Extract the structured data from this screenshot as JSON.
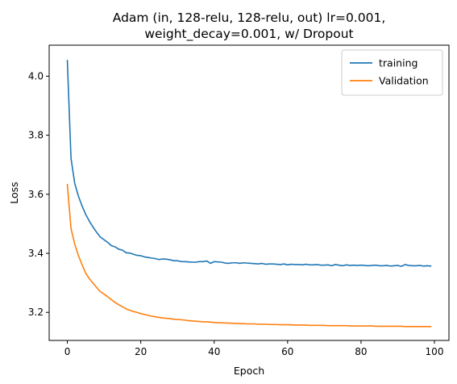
{
  "chart_data": {
    "type": "line",
    "title_line1": "Adam (in, 128-relu, 128-relu, out) lr=0.001,",
    "title_line2": "weight_decay=0.001, w/ Dropout",
    "xlabel": "Epoch",
    "ylabel": "Loss",
    "xlim": [
      -4.95,
      103.95
    ],
    "ylim": [
      3.105,
      4.105
    ],
    "xticks": [
      0,
      20,
      40,
      60,
      80,
      100
    ],
    "yticks": [
      3.2,
      3.4,
      3.6,
      3.8,
      4.0
    ],
    "ytick_labels": [
      "3.2",
      "3.4",
      "3.6",
      "3.8",
      "4.0"
    ],
    "grid": false,
    "legend_position": "top-right",
    "series": [
      {
        "name": "training",
        "color": "#1f77b4",
        "x": [
          0,
          1,
          2,
          3,
          4,
          5,
          6,
          7,
          8,
          9,
          10,
          11,
          12,
          13,
          14,
          15,
          16,
          17,
          18,
          19,
          20,
          21,
          22,
          23,
          24,
          25,
          26,
          27,
          28,
          29,
          30,
          31,
          32,
          33,
          34,
          35,
          36,
          37,
          38,
          39,
          40,
          41,
          42,
          43,
          44,
          45,
          46,
          47,
          48,
          49,
          50,
          51,
          52,
          53,
          54,
          55,
          56,
          57,
          58,
          59,
          60,
          61,
          62,
          63,
          64,
          65,
          66,
          67,
          68,
          69,
          70,
          71,
          72,
          73,
          74,
          75,
          76,
          77,
          78,
          79,
          80,
          81,
          82,
          83,
          84,
          85,
          86,
          87,
          88,
          89,
          90,
          91,
          92,
          93,
          94,
          95,
          96,
          97,
          98,
          99
        ],
        "values": [
          4.053,
          3.722,
          3.638,
          3.594,
          3.561,
          3.532,
          3.509,
          3.489,
          3.471,
          3.455,
          3.446,
          3.437,
          3.426,
          3.422,
          3.414,
          3.411,
          3.402,
          3.401,
          3.397,
          3.393,
          3.392,
          3.388,
          3.386,
          3.384,
          3.382,
          3.379,
          3.381,
          3.38,
          3.378,
          3.375,
          3.375,
          3.372,
          3.372,
          3.371,
          3.37,
          3.37,
          3.372,
          3.372,
          3.374,
          3.366,
          3.372,
          3.371,
          3.37,
          3.367,
          3.366,
          3.368,
          3.368,
          3.366,
          3.368,
          3.367,
          3.366,
          3.365,
          3.364,
          3.366,
          3.363,
          3.364,
          3.364,
          3.363,
          3.362,
          3.364,
          3.361,
          3.363,
          3.362,
          3.362,
          3.361,
          3.363,
          3.361,
          3.361,
          3.362,
          3.36,
          3.36,
          3.361,
          3.358,
          3.362,
          3.36,
          3.358,
          3.361,
          3.359,
          3.36,
          3.359,
          3.36,
          3.359,
          3.358,
          3.359,
          3.36,
          3.358,
          3.358,
          3.359,
          3.357,
          3.358,
          3.359,
          3.356,
          3.362,
          3.359,
          3.358,
          3.358,
          3.359,
          3.357,
          3.358,
          3.357
        ]
      },
      {
        "name": "Validation",
        "color": "#ff7f0e",
        "x": [
          0,
          1,
          2,
          3,
          4,
          5,
          6,
          7,
          8,
          9,
          10,
          11,
          12,
          13,
          14,
          15,
          16,
          17,
          18,
          19,
          20,
          21,
          22,
          23,
          24,
          25,
          26,
          27,
          28,
          29,
          30,
          31,
          32,
          33,
          34,
          35,
          36,
          37,
          38,
          39,
          40,
          41,
          42,
          43,
          44,
          45,
          46,
          47,
          48,
          49,
          50,
          51,
          52,
          53,
          54,
          55,
          56,
          57,
          58,
          59,
          60,
          61,
          62,
          63,
          64,
          65,
          66,
          67,
          68,
          69,
          70,
          71,
          72,
          73,
          74,
          75,
          76,
          77,
          78,
          79,
          80,
          81,
          82,
          83,
          84,
          85,
          86,
          87,
          88,
          89,
          90,
          91,
          92,
          93,
          94,
          95,
          96,
          97,
          98,
          99
        ],
        "values": [
          3.633,
          3.484,
          3.432,
          3.393,
          3.362,
          3.333,
          3.314,
          3.299,
          3.284,
          3.27,
          3.262,
          3.253,
          3.243,
          3.234,
          3.226,
          3.219,
          3.212,
          3.207,
          3.203,
          3.2,
          3.196,
          3.193,
          3.19,
          3.187,
          3.185,
          3.183,
          3.181,
          3.18,
          3.179,
          3.177,
          3.176,
          3.175,
          3.174,
          3.172,
          3.171,
          3.17,
          3.169,
          3.168,
          3.168,
          3.167,
          3.166,
          3.165,
          3.165,
          3.164,
          3.164,
          3.163,
          3.163,
          3.162,
          3.162,
          3.161,
          3.161,
          3.161,
          3.16,
          3.16,
          3.16,
          3.159,
          3.159,
          3.159,
          3.158,
          3.158,
          3.158,
          3.158,
          3.157,
          3.157,
          3.157,
          3.157,
          3.156,
          3.156,
          3.156,
          3.156,
          3.156,
          3.155,
          3.155,
          3.155,
          3.155,
          3.155,
          3.155,
          3.154,
          3.154,
          3.154,
          3.154,
          3.154,
          3.154,
          3.154,
          3.153,
          3.153,
          3.153,
          3.153,
          3.153,
          3.153,
          3.153,
          3.153,
          3.152,
          3.152,
          3.152,
          3.152,
          3.152,
          3.152,
          3.152,
          3.152
        ]
      }
    ]
  }
}
